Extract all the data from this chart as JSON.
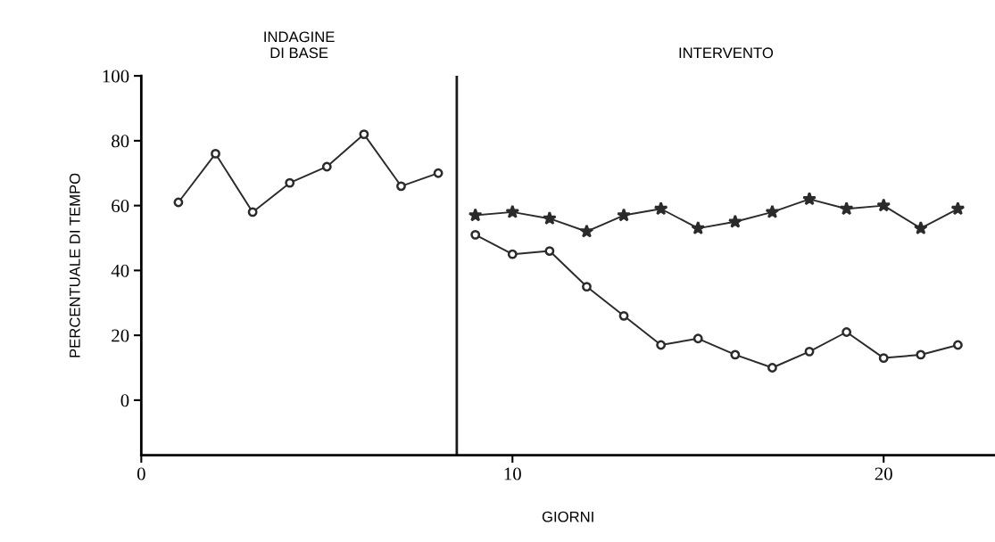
{
  "chart_data": {
    "type": "line",
    "xlabel": "GIORNI",
    "ylabel": "PERCENTUALE DI TEMPO",
    "xlim": [
      0,
      23
    ],
    "xticks": [
      0,
      10,
      20
    ],
    "ylim": [
      -17,
      100
    ],
    "yticks": [
      0,
      20,
      40,
      60,
      80,
      100
    ],
    "grid": false,
    "line_style": "solid",
    "series": [
      {
        "color": "#2b2b2b",
        "marker": "circle",
        "x": [
          1,
          2,
          3,
          4,
          5,
          6,
          7,
          8
        ],
        "values": [
          61,
          76,
          58,
          67,
          72,
          82,
          66,
          70
        ]
      },
      {
        "color": "#2b2b2b",
        "marker": "star",
        "x": [
          9,
          10,
          11,
          12,
          13,
          14,
          15,
          16,
          17,
          18,
          19,
          20,
          21,
          22
        ],
        "values": [
          57,
          58,
          56,
          52,
          57,
          59,
          53,
          55,
          58,
          62,
          59,
          60,
          53,
          59
        ]
      },
      {
        "color": "#2b2b2b",
        "marker": "circle",
        "x": [
          9,
          10,
          11,
          12,
          13,
          14,
          15,
          16,
          17,
          18,
          19,
          20,
          21,
          22
        ],
        "values": [
          51,
          45,
          46,
          35,
          26,
          17,
          19,
          14,
          10,
          15,
          21,
          13,
          14,
          17
        ]
      }
    ],
    "ref_lines": [
      {
        "axis": "x",
        "value": 8.5,
        "color": "#1a1a1a",
        "line_style": "solid"
      }
    ],
    "annotations": [
      "INDAGINE\nDI BASE",
      "INTERVENTO"
    ]
  }
}
